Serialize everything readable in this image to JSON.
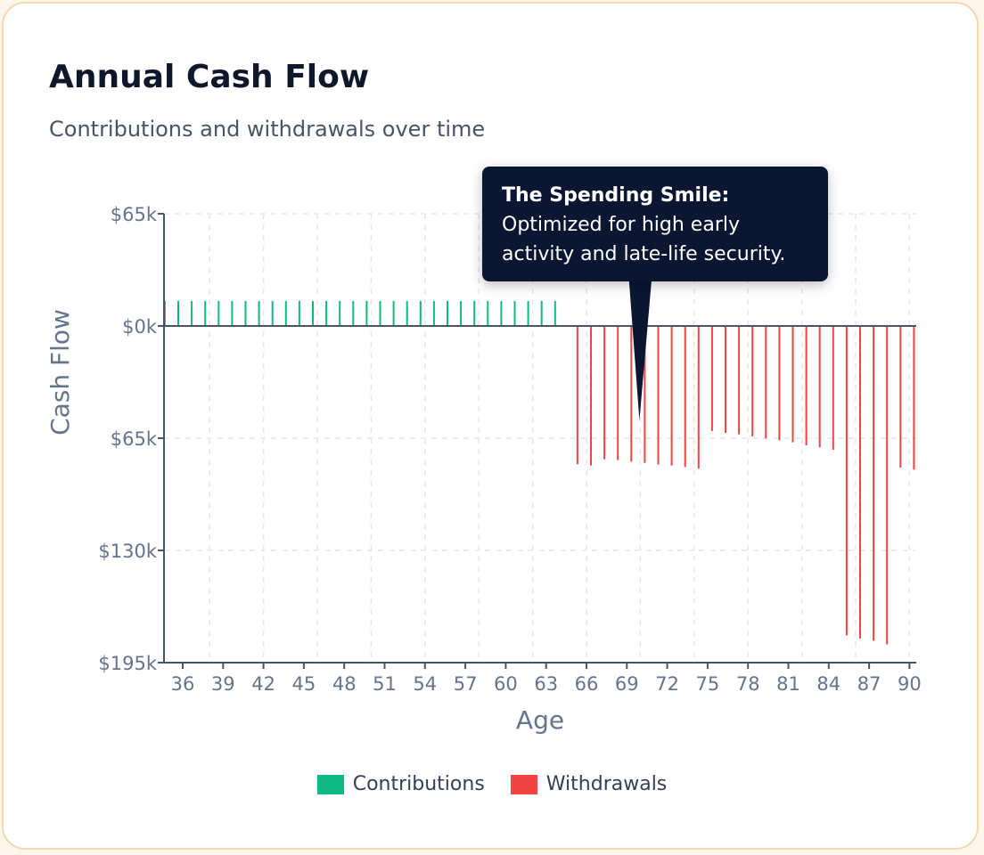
{
  "header": {
    "title": "Annual Cash Flow",
    "subtitle": "Contributions and withdrawals over time"
  },
  "tooltip": {
    "heading": "The Spending Smile:",
    "body": "Optimized for high early activity and late-life security."
  },
  "colors": {
    "contributions": "#10b981",
    "withdrawals": "#ef4444",
    "tooltip_bg": "#0b1633",
    "border": "#f6d7ab"
  },
  "chart_data": {
    "type": "bar",
    "title": "",
    "xlabel": "Age",
    "ylabel": "Cash Flow",
    "ylim": [
      -195,
      65
    ],
    "y_unit": "$k",
    "y_ticks": [
      65,
      0,
      -65,
      -130,
      -195
    ],
    "y_tick_labels": [
      "$65k",
      "$0k",
      "$65k",
      "$130k",
      "$195k"
    ],
    "x_ticks": [
      36,
      39,
      42,
      45,
      48,
      51,
      54,
      57,
      60,
      63,
      66,
      69,
      72,
      75,
      78,
      81,
      84,
      87,
      90
    ],
    "grid": true,
    "legend": "bottom",
    "series": [
      {
        "name": "Contributions",
        "ages": [
          35,
          36,
          37,
          38,
          39,
          40,
          41,
          42,
          43,
          44,
          45,
          46,
          47,
          48,
          49,
          50,
          51,
          52,
          53,
          54,
          55,
          56,
          57,
          58,
          59,
          60,
          61,
          62,
          63,
          64
        ],
        "values": [
          14.5,
          14.5,
          14.5,
          14.5,
          14.5,
          14.5,
          14.5,
          14.5,
          14.5,
          14.5,
          14.5,
          14.5,
          14.5,
          14.5,
          14.5,
          14.5,
          14.5,
          14.5,
          14.5,
          14.5,
          14.5,
          14.5,
          14.5,
          14.5,
          14.5,
          14.5,
          14.5,
          14.5,
          14.5,
          14.5
        ]
      },
      {
        "name": "Withdrawals",
        "ages": [
          65,
          66,
          67,
          68,
          69,
          70,
          71,
          72,
          73,
          74,
          75,
          76,
          77,
          78,
          79,
          80,
          81,
          82,
          83,
          84,
          85,
          86,
          87,
          88,
          89,
          90
        ],
        "values": [
          -80,
          -80.8,
          -77.2,
          -77.7,
          -78.6,
          -79.3,
          -80.2,
          -80.8,
          -81.7,
          -82.6,
          -60.9,
          -61.9,
          -62.8,
          -64,
          -65.2,
          -66.2,
          -67.4,
          -69.1,
          -70.3,
          -71.7,
          -179.2,
          -181,
          -182.3,
          -184.4,
          -82,
          -83.2
        ]
      }
    ]
  }
}
